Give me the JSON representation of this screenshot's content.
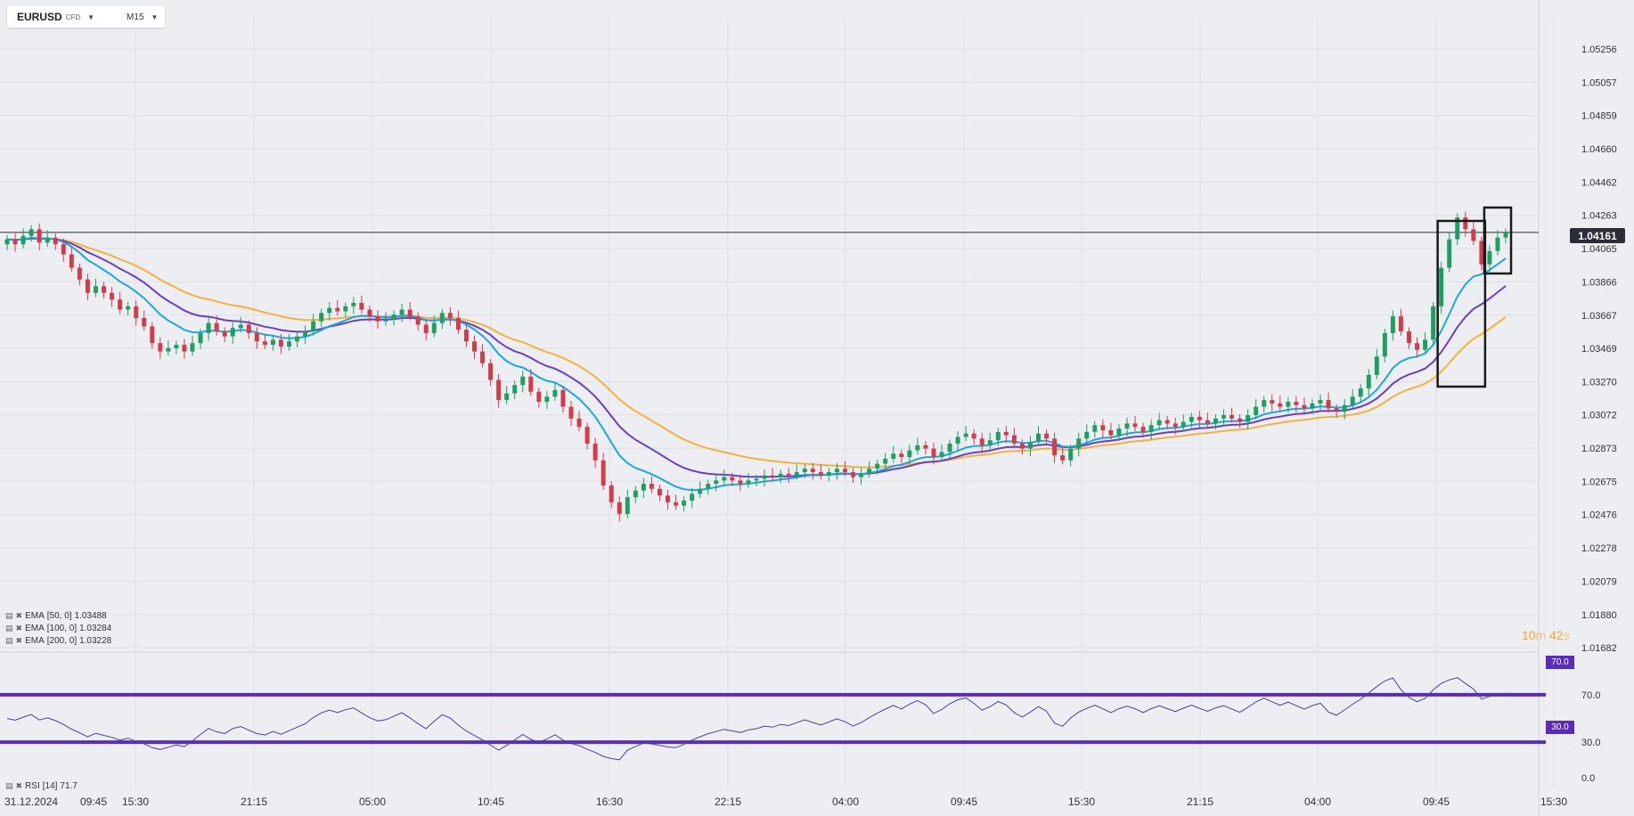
{
  "toolbar": {
    "symbol": "EURUSD",
    "instrument_type": "CFD",
    "timeframe": "M15"
  },
  "legend": [
    {
      "label": "EMA",
      "params": "[50,  0]",
      "value": "1.03488",
      "color": "#1ba7e6"
    },
    {
      "label": "EMA",
      "params": "[100,  0]",
      "value": "1.03284",
      "color": "#6b3fc4"
    },
    {
      "label": "EMA",
      "params": "[200,  0]",
      "value": "1.03228",
      "color": "#f6b13a"
    }
  ],
  "rsi_legend": {
    "label": "RSI",
    "params": "[14]",
    "value": "71.7"
  },
  "current_price": "1.04161",
  "countdown": {
    "minutes": "10",
    "min_unit": "m",
    "seconds": "42",
    "sec_unit": "s"
  },
  "rsi_levels": {
    "upper": "70.0",
    "lower": "30.0"
  },
  "colors": {
    "up": "#1e9e60",
    "down": "#d33b4b",
    "ema50": "#1ba7e6",
    "ema100": "#6b3fc4",
    "ema200": "#f6b13a",
    "rsi": "#4a3fa0",
    "rsi_level": "#5b2bbd"
  },
  "chart_data": {
    "type": "candlestick",
    "symbol": "EURUSD",
    "timeframe": "M15",
    "x_tick_labels": [
      "31.12.2024",
      "09:45",
      "15:30",
      "21:15",
      "05:00",
      "10:45",
      "16:30",
      "22:15",
      "04:00",
      "09:45",
      "15:30",
      "21:15",
      "04:00",
      "09:45",
      "15:30"
    ],
    "y_tick_labels": [
      "1.05256",
      "1.05057",
      "1.04859",
      "1.04660",
      "1.04462",
      "1.04263",
      "1.04065",
      "1.03866",
      "1.03667",
      "1.03469",
      "1.03270",
      "1.03072",
      "1.02873",
      "1.02675",
      "1.02476",
      "1.02278",
      "1.02079",
      "1.01880",
      "1.01682"
    ],
    "ylim": [
      1.01682,
      1.0545
    ],
    "close_series": [
      1.0412,
      1.0409,
      1.0414,
      1.0418,
      1.041,
      1.0413,
      1.0409,
      1.0403,
      1.0395,
      1.0388,
      1.038,
      1.0384,
      1.038,
      1.0376,
      1.037,
      1.0372,
      1.0365,
      1.036,
      1.035,
      1.0345,
      1.0347,
      1.0349,
      1.0345,
      1.035,
      1.0356,
      1.0362,
      1.0357,
      1.0354,
      1.0359,
      1.0361,
      1.0356,
      1.0351,
      1.0349,
      1.0352,
      1.0348,
      1.0351,
      1.0354,
      1.0357,
      1.0363,
      1.0368,
      1.0371,
      1.0369,
      1.0372,
      1.0374,
      1.037,
      1.0366,
      1.0363,
      1.0364,
      1.0367,
      1.037,
      1.0366,
      1.0361,
      1.0356,
      1.0362,
      1.0368,
      1.0365,
      1.0358,
      1.0351,
      1.0345,
      1.0338,
      1.0328,
      1.0316,
      1.032,
      1.0325,
      1.033,
      1.0321,
      1.0315,
      1.0318,
      1.0322,
      1.0312,
      1.0305,
      1.03,
      1.029,
      1.028,
      1.0265,
      1.0255,
      1.0248,
      1.0258,
      1.0262,
      1.0266,
      1.0263,
      1.0259,
      1.0255,
      1.0253,
      1.0256,
      1.026,
      1.0263,
      1.0266,
      1.0268,
      1.027,
      1.0268,
      1.0266,
      1.0268,
      1.0269,
      1.0271,
      1.027,
      1.0272,
      1.0271,
      1.0273,
      1.0275,
      1.0273,
      1.0271,
      1.0273,
      1.0275,
      1.0273,
      1.027,
      1.0272,
      1.0275,
      1.0278,
      1.0281,
      1.0284,
      1.0282,
      1.0286,
      1.0289,
      1.0287,
      1.0282,
      1.0285,
      1.029,
      1.0294,
      1.0296,
      1.0293,
      1.0289,
      1.0292,
      1.0297,
      1.0295,
      1.029,
      1.0287,
      1.0291,
      1.0296,
      1.0293,
      1.0283,
      1.028,
      1.0287,
      1.0293,
      1.0297,
      1.0301,
      1.0298,
      1.0295,
      1.0299,
      1.0302,
      1.03,
      1.0297,
      1.0301,
      1.0304,
      1.0302,
      1.03,
      1.0303,
      1.0306,
      1.0304,
      1.0302,
      1.0305,
      1.0307,
      1.0305,
      1.0303,
      1.0307,
      1.0312,
      1.0316,
      1.0314,
      1.0312,
      1.0315,
      1.0313,
      1.0311,
      1.0314,
      1.0316,
      1.0311,
      1.0309,
      1.0313,
      1.0318,
      1.0323,
      1.0331,
      1.0342,
      1.0356,
      1.0366,
      1.0357,
      1.035,
      1.0346,
      1.0352,
      1.0372,
      1.0395,
      1.0412,
      1.0425,
      1.0418,
      1.0411,
      1.0397,
      1.0405,
      1.0413,
      1.0416
    ]
  }
}
